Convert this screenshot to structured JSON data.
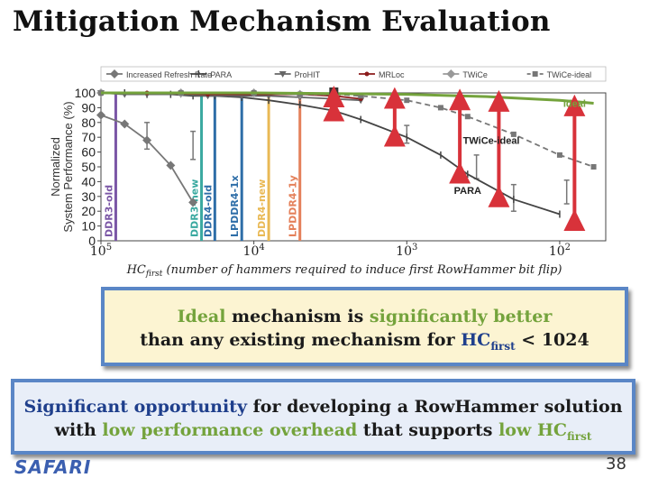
{
  "slide": {
    "title": "Mitigation Mechanism Evaluation",
    "logo": "SAFARI",
    "page_number": "38"
  },
  "chart_data": {
    "type": "line",
    "ylabel_line1": "Normalized",
    "ylabel_line2": "System Performance (%)",
    "xlabel_prefix": "HC",
    "xlabel_sub": "first",
    "xlabel_rest": " (number of hammers required to induce first RowHammer bit flip)",
    "xscale": "log (decreasing left to right)",
    "xlim": [
      100000,
      50
    ],
    "ylim": [
      0,
      100
    ],
    "x_ticks": [
      {
        "value": 100000,
        "base": "10",
        "exp": "5"
      },
      {
        "value": 10000,
        "base": "10",
        "exp": "4"
      },
      {
        "value": 1000,
        "base": "10",
        "exp": "3"
      },
      {
        "value": 100,
        "base": "10",
        "exp": "2"
      }
    ],
    "y_ticks": [
      0,
      10,
      20,
      30,
      40,
      50,
      60,
      70,
      80,
      90,
      100
    ],
    "legend_position": "top",
    "series": [
      {
        "name": "Increased Refresh Rate",
        "color": "#777777",
        "marker": "diamond",
        "dash": "solid",
        "x": [
          100000,
          70000,
          50000,
          35000,
          25000
        ],
        "y": [
          85,
          79,
          68,
          51,
          26
        ]
      },
      {
        "name": "PARA",
        "color": "#444444",
        "marker": "bar",
        "dash": "solid",
        "x": [
          100000,
          70000,
          50000,
          35000,
          25000,
          18000,
          12000,
          8000,
          5000,
          3000,
          2000,
          1000,
          600,
          400,
          200,
          100
        ],
        "y": [
          100,
          100,
          99,
          99,
          98,
          98,
          97,
          95,
          92,
          88,
          82,
          70,
          58,
          45,
          28,
          18
        ]
      },
      {
        "name": "ProHIT",
        "color": "#666666",
        "marker": "triangle",
        "dash": "solid",
        "x": [
          100000,
          70000,
          50000,
          30000,
          20000,
          12000,
          8000,
          5000,
          3000,
          2000
        ],
        "y": [
          100,
          99,
          99,
          99,
          98,
          98,
          98,
          97,
          96,
          95
        ]
      },
      {
        "name": "MRLoc",
        "color": "#8b1c1c",
        "marker": "star",
        "dash": "solid",
        "x": [
          100000,
          50000,
          20000,
          10000,
          5000,
          3000,
          2000
        ],
        "y": [
          100,
          100,
          99,
          99,
          99,
          98,
          96
        ]
      },
      {
        "name": "TWiCe",
        "color": "#999999",
        "marker": "diamond",
        "dash": "solid",
        "x": [
          100000,
          30000,
          10000,
          5000,
          3000
        ],
        "y": [
          100,
          100,
          100,
          99,
          99
        ]
      },
      {
        "name": "TWiCe-ideal",
        "color": "#777777",
        "marker": "square",
        "dash": "dashed",
        "x": [
          100000,
          30000,
          10000,
          5000,
          3000,
          2000,
          1000,
          600,
          400,
          200,
          100,
          60
        ],
        "y": [
          100,
          100,
          100,
          99,
          99,
          98,
          95,
          90,
          84,
          72,
          58,
          50
        ]
      },
      {
        "name": "Ideal",
        "color": "#74a33c",
        "marker": "none",
        "dash": "solid",
        "x": [
          100000,
          10000,
          3000,
          1000,
          300,
          100,
          60
        ],
        "y": [
          100,
          100,
          99.5,
          99,
          97.5,
          95,
          93
        ]
      }
    ],
    "error_bars": [
      {
        "x": 50000,
        "low": 62,
        "high": 80,
        "color": "#777777"
      },
      {
        "x": 25000,
        "low": 55,
        "high": 74,
        "color": "#777777"
      },
      {
        "x": 3000,
        "low": 86,
        "high": 96,
        "color": "#777777"
      },
      {
        "x": 1000,
        "low": 66,
        "high": 78,
        "color": "#777777"
      },
      {
        "x": 350,
        "low": 42,
        "high": 58,
        "color": "#777777"
      },
      {
        "x": 200,
        "low": 20,
        "high": 38,
        "color": "#777777"
      },
      {
        "x": 90,
        "low": 25,
        "high": 41,
        "color": "#777777"
      }
    ],
    "arrows": [
      {
        "x": 3000,
        "from": 88,
        "to": 100
      },
      {
        "x": 1200,
        "from": 71,
        "to": 99
      },
      {
        "x": 450,
        "from": 46,
        "to": 98
      },
      {
        "x": 250,
        "from": 30,
        "to": 97
      },
      {
        "x": 80,
        "from": 14,
        "to": 94
      }
    ],
    "chip_lines": [
      {
        "label": "DDR3-old",
        "x": 80000,
        "color": "#7b57a6"
      },
      {
        "label": "DDR3-new",
        "x": 22000,
        "color": "#3aa9a0"
      },
      {
        "label": "DDR4-old",
        "x": 18000,
        "color": "#2e6ea8"
      },
      {
        "label": "LPDDR4-1x",
        "x": 12000,
        "color": "#2e6ea8"
      },
      {
        "label": "DDR4-new",
        "x": 8000,
        "color": "#e9b955"
      },
      {
        "label": "LPDDR4-1y",
        "x": 5000,
        "color": "#e4805a"
      }
    ],
    "annotations": [
      {
        "text": "Ideal",
        "x": 80,
        "y": 93,
        "color": "#74a33c"
      },
      {
        "text": "TWiCe-ideal",
        "x": 280,
        "y": 68,
        "color": "#222222"
      },
      {
        "text": "PARA",
        "x": 400,
        "y": 34,
        "color": "#222222"
      }
    ]
  },
  "box1": {
    "ideal": "Ideal",
    "line1_rest": " mechanism is ",
    "sig_better": "significantly better",
    "line2_pre": "than any existing mechanism for ",
    "hc": "HC",
    "sub": "first",
    "line2_post": " < 1024"
  },
  "box2": {
    "sig_opp": "Significant opportunity",
    "line1_rest": " for developing a RowHammer solution",
    "line2_pre": "with ",
    "low_perf": "low performance overhead",
    "line2_mid": " that supports ",
    "low_hc": "low HC",
    "sub": "first"
  }
}
